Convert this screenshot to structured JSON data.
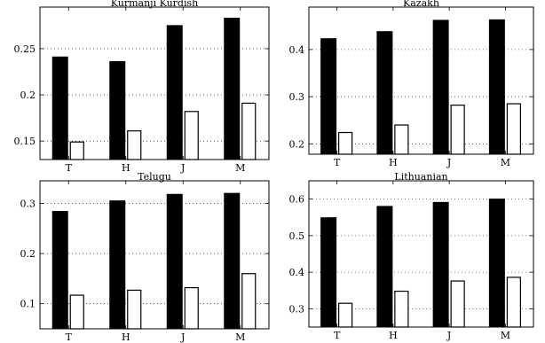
{
  "chart_data": [
    {
      "type": "bar",
      "title": "Kurmanji Kurdish",
      "categories": [
        "T",
        "H",
        "J",
        "M"
      ],
      "series": [
        {
          "values": [
            0.241,
            0.236,
            0.275,
            0.283
          ],
          "color": "#000000"
        },
        {
          "values": [
            0.149,
            0.161,
            0.182,
            0.191
          ],
          "color": "#ffffff"
        }
      ],
      "ylim": [
        0.13,
        0.295
      ],
      "yticks": [
        0.15,
        0.2,
        0.25
      ],
      "ytick_labels": [
        "0.15",
        "0.2",
        "0.25"
      ],
      "grid": true
    },
    {
      "type": "bar",
      "title": "Kazakh",
      "categories": [
        "T",
        "H",
        "J",
        "M"
      ],
      "series": [
        {
          "values": [
            0.423,
            0.438,
            0.462,
            0.463
          ],
          "color": "#000000"
        },
        {
          "values": [
            0.224,
            0.24,
            0.282,
            0.285
          ],
          "color": "#ffffff"
        }
      ],
      "ylim": [
        0.178,
        0.49
      ],
      "yticks": [
        0.2,
        0.3,
        0.4
      ],
      "ytick_labels": [
        "0.2",
        "0.3",
        "0.4"
      ],
      "grid": true
    },
    {
      "type": "bar",
      "title": "Telugu",
      "categories": [
        "T",
        "H",
        "J",
        "M"
      ],
      "series": [
        {
          "values": [
            0.284,
            0.305,
            0.318,
            0.32
          ],
          "color": "#000000"
        },
        {
          "values": [
            0.117,
            0.127,
            0.132,
            0.16
          ],
          "color": "#ffffff"
        }
      ],
      "ylim": [
        0.05,
        0.345
      ],
      "yticks": [
        0.1,
        0.2,
        0.3
      ],
      "ytick_labels": [
        "0.1",
        "0.2",
        "0.3"
      ],
      "grid": true
    },
    {
      "type": "bar",
      "title": "Lithuanian",
      "categories": [
        "T",
        "H",
        "J",
        "M"
      ],
      "series": [
        {
          "values": [
            0.549,
            0.58,
            0.591,
            0.6
          ],
          "color": "#000000"
        },
        {
          "values": [
            0.315,
            0.348,
            0.376,
            0.386
          ],
          "color": "#ffffff"
        }
      ],
      "ylim": [
        0.25,
        0.65
      ],
      "yticks": [
        0.3,
        0.4,
        0.5,
        0.6
      ],
      "ytick_labels": [
        "0.3",
        "0.4",
        "0.5",
        "0.6"
      ],
      "grid": true
    }
  ]
}
